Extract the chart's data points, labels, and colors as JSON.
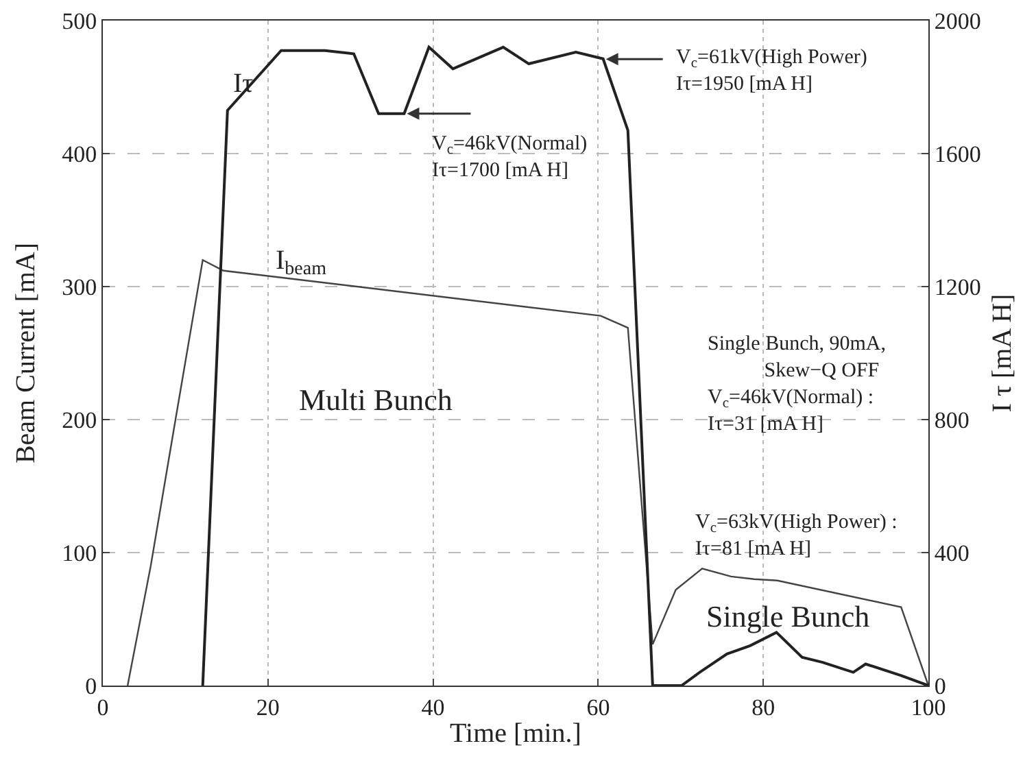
{
  "chart_data": {
    "type": "line",
    "xlabel": "Time [min.]",
    "ylabel": "Beam Current [mA]",
    "y2label": "I τ [mA H]",
    "xlim": [
      0,
      100
    ],
    "xticks": [
      0,
      20,
      40,
      60,
      80,
      100
    ],
    "ylim": [
      0,
      500
    ],
    "yticks": [
      0,
      100,
      200,
      300,
      400,
      500
    ],
    "y2lim": [
      0,
      2000
    ],
    "y2ticks": [
      0,
      400,
      800,
      1200,
      1600,
      2000
    ],
    "grid": true,
    "legend": false,
    "series": [
      {
        "name": "Iτ",
        "color": "#222222",
        "axis": "y2",
        "x": [
          12.1,
          15.1,
          21.6,
          26.9,
          30.4,
          33.4,
          36.5,
          39.5,
          42.4,
          48.5,
          51.6,
          57.3,
          60.6,
          63.6,
          66.6,
          70.1,
          72.3,
          75.6,
          78.4,
          81.6,
          84.7,
          87.2,
          90.9,
          92.4,
          96.7,
          100
        ],
        "values": [
          0,
          1730,
          1910,
          1910,
          1900,
          1720,
          1720,
          1920,
          1855,
          1920,
          1870,
          1905,
          1885,
          1670,
          0,
          0,
          40,
          95,
          120,
          160,
          85,
          70,
          40,
          65,
          30,
          0
        ]
      },
      {
        "name": "I$_{beam}$",
        "color": "#444444",
        "x": [
          3.0,
          5.8,
          8.8,
          12.1,
          14.6,
          60.3,
          63.6,
          66.6,
          69.4,
          72.6,
          76.1,
          78.9,
          81.7,
          96.7,
          100
        ],
        "values": [
          0,
          90,
          200,
          320,
          312,
          278,
          269,
          31,
          72,
          88,
          82,
          80,
          79,
          59,
          0
        ]
      }
    ],
    "annotations": [
      {
        "text": "V$_{c}$=61kV(High Power)\nIτ=1950 [mA H]",
        "x": 60.6,
        "y": 471
      },
      {
        "text": "V$_{c}$=46kV(Normal)\nIτ=1700 [mA H]",
        "x": 36.5,
        "y": 430
      },
      "Multi Bunch",
      "Single Bunch",
      "Single Bunch, 90mA,\n           Skew−Q OFF\nV$_{c}$=46kV(Normal) :\nIτ=31 [mA H]",
      "V$_{c}$=63kV(High Power) :\nIτ=81 [mA H]"
    ]
  }
}
